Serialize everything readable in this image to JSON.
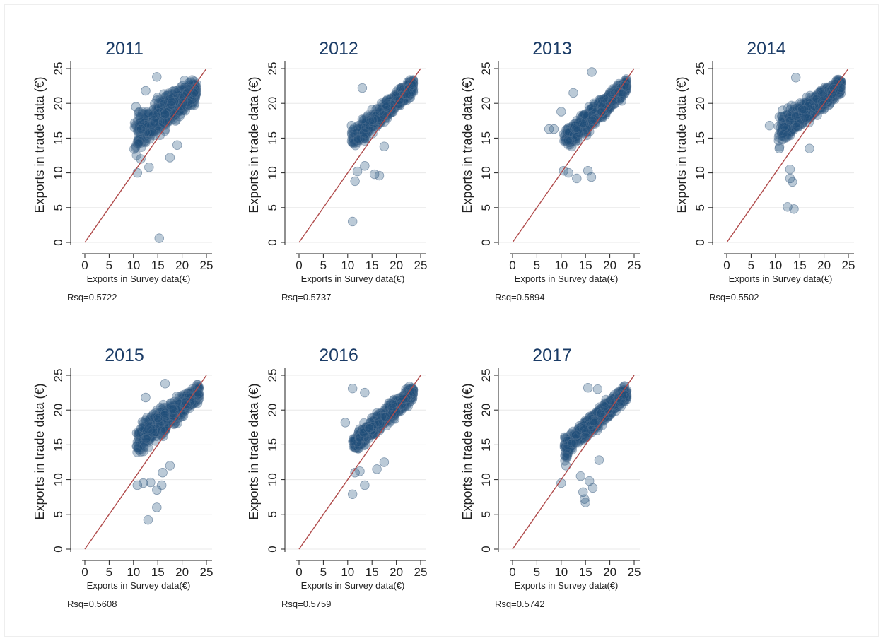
{
  "colors": {
    "point_fill": "#1f4e79",
    "point_stroke": "#5b7896",
    "fit_line": "#b04a4a",
    "title": "#1a3b66",
    "axis": "#222222",
    "grid": "#e8e8e8"
  },
  "chart_data": [
    {
      "type": "scatter",
      "title": "2011",
      "xlabel": "Exports in Survey data(€)",
      "ylabel": "Exports in trade data (€)",
      "note": "Rsq=0.5722",
      "xlim": [
        0,
        25
      ],
      "ylim": [
        0,
        25
      ],
      "xticks": [
        0,
        5,
        10,
        15,
        20,
        25
      ],
      "yticks": [
        0,
        5,
        10,
        15,
        20,
        25
      ],
      "grid": true,
      "reference_line": {
        "from": [
          0,
          0
        ],
        "to": [
          25,
          25
        ]
      },
      "cloud": {
        "x_min": 10,
        "x_max": 23,
        "y_at_x_min": [
          11,
          20
        ],
        "y_at_x_max": [
          20,
          24
        ]
      },
      "points": [
        [
          15.3,
          0.6
        ],
        [
          14.8,
          23.8
        ],
        [
          10.5,
          19.5
        ],
        [
          10.8,
          10.0
        ],
        [
          13.2,
          10.8
        ],
        [
          11.5,
          12.0
        ],
        [
          17.5,
          12.2
        ],
        [
          19.0,
          14.0
        ],
        [
          12.5,
          21.8
        ],
        [
          20.5,
          23.3
        ]
      ]
    },
    {
      "type": "scatter",
      "title": "2012",
      "xlabel": "Exports in Survey data(€)",
      "ylabel": "Exports in trade data (€)",
      "note": "Rsq=0.5737",
      "xlim": [
        0,
        25
      ],
      "ylim": [
        0,
        25
      ],
      "xticks": [
        0,
        5,
        10,
        15,
        20,
        25
      ],
      "yticks": [
        0,
        5,
        10,
        15,
        20,
        25
      ],
      "grid": true,
      "reference_line": {
        "from": [
          0,
          0
        ],
        "to": [
          25,
          25
        ]
      },
      "cloud": {
        "x_min": 10.5,
        "x_max": 23.5,
        "y_at_x_min": [
          12,
          17
        ],
        "y_at_x_max": [
          21,
          24
        ]
      },
      "points": [
        [
          11.0,
          3.0
        ],
        [
          11.5,
          8.8
        ],
        [
          12.0,
          10.2
        ],
        [
          15.5,
          9.8
        ],
        [
          16.5,
          9.6
        ],
        [
          13.0,
          22.2
        ],
        [
          10.8,
          16.8
        ],
        [
          13.5,
          11.0
        ],
        [
          17.5,
          13.8
        ]
      ]
    },
    {
      "type": "scatter",
      "title": "2013",
      "xlabel": "Exports in Survey data(€)",
      "ylabel": "Exports in trade data (€)",
      "note": "Rsq=0.5894",
      "xlim": [
        0,
        25
      ],
      "ylim": [
        0,
        25
      ],
      "xticks": [
        0,
        5,
        10,
        15,
        20,
        25
      ],
      "yticks": [
        0,
        5,
        10,
        15,
        20,
        25
      ],
      "grid": true,
      "reference_line": {
        "from": [
          0,
          0
        ],
        "to": [
          25,
          25
        ]
      },
      "cloud": {
        "x_min": 10.5,
        "x_max": 23.5,
        "y_at_x_min": [
          12,
          17
        ],
        "y_at_x_max": [
          21,
          24
        ]
      },
      "points": [
        [
          7.5,
          16.3
        ],
        [
          8.5,
          16.3
        ],
        [
          16.3,
          24.5
        ],
        [
          10.5,
          10.3
        ],
        [
          11.5,
          10.0
        ],
        [
          13.2,
          9.2
        ],
        [
          16.2,
          9.4
        ],
        [
          15.5,
          10.3
        ],
        [
          10.0,
          18.8
        ],
        [
          12.5,
          21.5
        ]
      ]
    },
    {
      "type": "scatter",
      "title": "2014",
      "xlabel": "Exports in Survey data(€)",
      "ylabel": "Exports in trade data (€)",
      "note": "Rsq=0.5502",
      "xlim": [
        0,
        25
      ],
      "ylim": [
        0,
        25
      ],
      "xticks": [
        0,
        5,
        10,
        15,
        20,
        25
      ],
      "yticks": [
        0,
        5,
        10,
        15,
        20,
        25
      ],
      "grid": true,
      "reference_line": {
        "from": [
          0,
          0
        ],
        "to": [
          25,
          25
        ]
      },
      "cloud": {
        "x_min": 10.5,
        "x_max": 23.5,
        "y_at_x_min": [
          13,
          19
        ],
        "y_at_x_max": [
          21,
          24
        ]
      },
      "points": [
        [
          8.8,
          16.8
        ],
        [
          12.5,
          5.1
        ],
        [
          13.8,
          4.8
        ],
        [
          13.0,
          9.2
        ],
        [
          13.5,
          8.7
        ],
        [
          14.2,
          23.7
        ],
        [
          13.0,
          10.5
        ],
        [
          10.8,
          13.5
        ],
        [
          17.0,
          13.5
        ],
        [
          11.5,
          19.0
        ]
      ]
    },
    {
      "type": "scatter",
      "title": "2015",
      "xlabel": "Exports in Survey data(€)",
      "ylabel": "Exports in trade data (€)",
      "note": "Rsq=0.5608",
      "xlim": [
        0,
        25
      ],
      "ylim": [
        0,
        25
      ],
      "xticks": [
        0,
        5,
        10,
        15,
        20,
        25
      ],
      "yticks": [
        0,
        5,
        10,
        15,
        20,
        25
      ],
      "grid": true,
      "reference_line": {
        "from": [
          0,
          0
        ],
        "to": [
          25,
          25
        ]
      },
      "cloud": {
        "x_min": 10.5,
        "x_max": 23.5,
        "y_at_x_min": [
          12,
          19
        ],
        "y_at_x_max": [
          21,
          24
        ]
      },
      "points": [
        [
          13.0,
          4.2
        ],
        [
          14.8,
          6.0
        ],
        [
          10.8,
          9.2
        ],
        [
          12.0,
          9.5
        ],
        [
          13.5,
          9.6
        ],
        [
          14.8,
          8.5
        ],
        [
          15.8,
          9.2
        ],
        [
          16.5,
          23.8
        ],
        [
          12.5,
          21.8
        ],
        [
          17.5,
          12.0
        ],
        [
          16.0,
          11.0
        ]
      ]
    },
    {
      "type": "scatter",
      "title": "2016",
      "xlabel": "Exports in Survey data(€)",
      "ylabel": "Exports in trade data (€)",
      "note": "Rsq=0.5759",
      "xlim": [
        0,
        25
      ],
      "ylim": [
        0,
        25
      ],
      "xticks": [
        0,
        5,
        10,
        15,
        20,
        25
      ],
      "yticks": [
        0,
        5,
        10,
        15,
        20,
        25
      ],
      "grid": true,
      "reference_line": {
        "from": [
          0,
          0
        ],
        "to": [
          25,
          25
        ]
      },
      "cloud": {
        "x_min": 11,
        "x_max": 23.5,
        "y_at_x_min": [
          13,
          17
        ],
        "y_at_x_max": [
          21,
          24
        ]
      },
      "points": [
        [
          9.5,
          18.2
        ],
        [
          11.0,
          23.1
        ],
        [
          11.0,
          7.9
        ],
        [
          13.5,
          9.2
        ],
        [
          11.5,
          11.0
        ],
        [
          12.5,
          11.2
        ],
        [
          16.0,
          11.5
        ],
        [
          17.5,
          12.5
        ],
        [
          13.5,
          22.5
        ]
      ]
    },
    {
      "type": "scatter",
      "title": "2017",
      "xlabel": "Exports in Survey data(€)",
      "ylabel": "Exports in trade data (€)",
      "note": "Rsq=0.5742",
      "xlim": [
        0,
        25
      ],
      "ylim": [
        0,
        25
      ],
      "xticks": [
        0,
        5,
        10,
        15,
        20,
        25
      ],
      "yticks": [
        0,
        5,
        10,
        15,
        20,
        25
      ],
      "grid": true,
      "reference_line": {
        "from": [
          0,
          0
        ],
        "to": [
          25,
          25
        ]
      },
      "cloud": {
        "x_min": 10.5,
        "x_max": 23.5,
        "y_at_x_min": [
          12,
          17
        ],
        "y_at_x_max": [
          21,
          24
        ]
      },
      "points": [
        [
          10.0,
          9.5
        ],
        [
          14.5,
          8.2
        ],
        [
          14.8,
          7.2
        ],
        [
          15.0,
          6.7
        ],
        [
          15.8,
          9.8
        ],
        [
          16.5,
          8.8
        ],
        [
          14.0,
          10.5
        ],
        [
          15.5,
          23.2
        ],
        [
          17.5,
          23.0
        ],
        [
          11.0,
          12.0
        ],
        [
          17.8,
          12.8
        ]
      ]
    }
  ]
}
